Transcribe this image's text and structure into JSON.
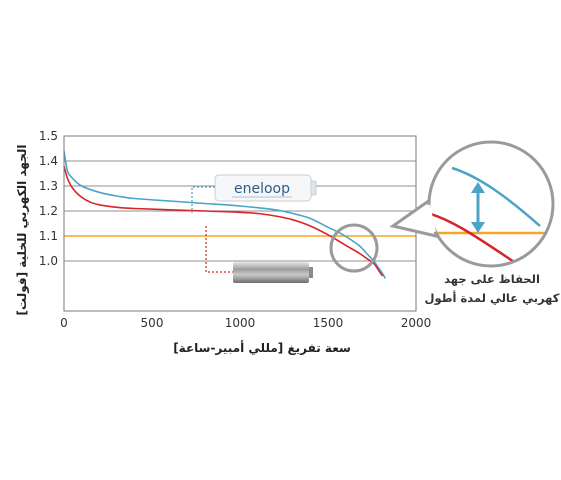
{
  "chart_data": {
    "type": "line",
    "xlabel": "سعة تفريغ [مللي أمبير-ساعة]",
    "ylabel": "الجهد الكهربي للخلية [فولت]",
    "xlim": [
      0,
      2000
    ],
    "ylim": [
      0.8,
      1.5
    ],
    "x_ticks": [
      "0",
      "500",
      "1000",
      "1500",
      "2000"
    ],
    "y_ticks": [
      "1.5",
      "1.4",
      "1.3",
      "1.2",
      "1.1",
      "1.0"
    ],
    "grid": true,
    "series": [
      {
        "name": "eneloop",
        "color": "#4aa3c9",
        "x": [
          0,
          20,
          50,
          100,
          200,
          300,
          400,
          600,
          800,
          1000,
          1200,
          1300,
          1400,
          1500,
          1560,
          1620,
          1680,
          1720,
          1760,
          1790,
          1810,
          1825
        ],
        "y": [
          1.44,
          1.36,
          1.33,
          1.3,
          1.275,
          1.26,
          1.25,
          1.24,
          1.23,
          1.22,
          1.205,
          1.19,
          1.17,
          1.135,
          1.115,
          1.09,
          1.06,
          1.03,
          1.0,
          0.97,
          0.95,
          0.93
        ]
      },
      {
        "name": "",
        "color": "#d6262b",
        "x": [
          0,
          20,
          50,
          100,
          150,
          200,
          300,
          400,
          600,
          800,
          1000,
          1100,
          1200,
          1300,
          1400,
          1500,
          1560,
          1620,
          1680,
          1720,
          1760,
          1790,
          1810
        ],
        "y": [
          1.38,
          1.33,
          1.29,
          1.255,
          1.235,
          1.225,
          1.215,
          1.21,
          1.205,
          1.2,
          1.195,
          1.19,
          1.18,
          1.165,
          1.14,
          1.105,
          1.08,
          1.055,
          1.03,
          1.01,
          0.99,
          0.96,
          0.94
        ]
      }
    ],
    "reference_line": {
      "y": 1.1,
      "color": "#f5a623"
    }
  },
  "labels": {
    "callout_line1": "الحفاظ على جهد",
    "callout_line2": "كهربي عالي لمدة أطول",
    "brand": "eneloop"
  },
  "colors": {
    "grid": "#6b6b6b",
    "frame": "#7a7a7a",
    "dotted": "#4aa3c9",
    "dotted_red": "#d6262b",
    "magnifier": "#9a9a9a",
    "arrow": "#4aa3c9"
  }
}
